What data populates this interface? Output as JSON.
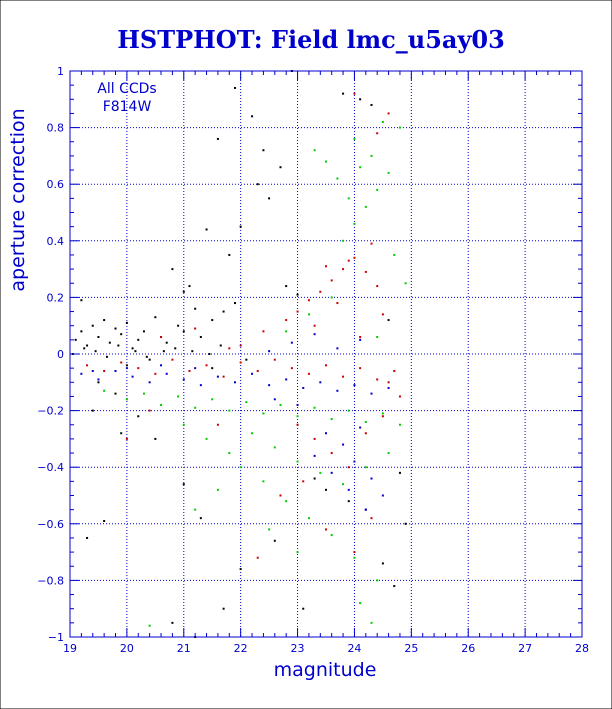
{
  "chart_data": {
    "type": "scatter",
    "title": "HSTPHOT: Field lmc_u5ay03",
    "xlabel": "magnitude",
    "ylabel": "aperture correction",
    "xlim": [
      19,
      28
    ],
    "ylim": [
      -1,
      1
    ],
    "x_ticks": [
      "19",
      "20",
      "21",
      "22",
      "23",
      "24",
      "25",
      "26",
      "27",
      "28"
    ],
    "y_ticks": [
      "−1",
      "−0.8",
      "−0.6",
      "−0.4",
      "−0.2",
      "0",
      "0.2",
      "0.4",
      "0.6",
      "0.8",
      "1"
    ],
    "grid": true,
    "annotations": [
      "All CCDs",
      "F814W"
    ],
    "series": [
      {
        "color": "#000000",
        "points": [
          [
            19.1,
            0.05
          ],
          [
            19.2,
            0.08
          ],
          [
            19.3,
            0.03
          ],
          [
            19.4,
            0.1
          ],
          [
            19.5,
            0.06
          ],
          [
            19.6,
            0.12
          ],
          [
            19.7,
            0.04
          ],
          [
            19.8,
            0.09
          ],
          [
            19.9,
            0.07
          ],
          [
            20.0,
            0.11
          ],
          [
            20.1,
            0.02
          ],
          [
            20.2,
            0.05
          ],
          [
            20.3,
            0.08
          ],
          [
            20.5,
            0.13
          ],
          [
            20.6,
            0.06
          ],
          [
            20.7,
            0.04
          ],
          [
            20.9,
            0.1
          ],
          [
            21.0,
            0.08
          ],
          [
            21.2,
            0.16
          ],
          [
            21.3,
            0.06
          ],
          [
            21.5,
            0.12
          ],
          [
            21.7,
            0.15
          ],
          [
            21.9,
            0.18
          ],
          [
            21.1,
            0.24
          ],
          [
            21.0,
            0.22
          ],
          [
            20.8,
            0.3
          ],
          [
            21.4,
            0.44
          ],
          [
            21.8,
            0.35
          ],
          [
            22.0,
            0.45
          ],
          [
            22.3,
            0.6
          ],
          [
            22.5,
            0.55
          ],
          [
            22.7,
            0.66
          ],
          [
            21.6,
            0.76
          ],
          [
            21.9,
            0.94
          ],
          [
            22.2,
            0.84
          ],
          [
            22.4,
            0.72
          ],
          [
            22.9,
            1.0
          ],
          [
            23.8,
            0.92
          ],
          [
            24.1,
            0.9
          ],
          [
            24.3,
            0.88
          ],
          [
            19.2,
            0.19
          ],
          [
            19.5,
            -0.1
          ],
          [
            19.8,
            -0.14
          ],
          [
            20.2,
            -0.22
          ],
          [
            20.5,
            -0.3
          ],
          [
            21.0,
            -0.46
          ],
          [
            21.3,
            -0.58
          ],
          [
            21.7,
            -0.9
          ],
          [
            22.0,
            -0.76
          ],
          [
            22.6,
            -0.66
          ],
          [
            23.1,
            -0.9
          ],
          [
            20.8,
            -0.95
          ],
          [
            21.2,
            -1.0
          ],
          [
            19.3,
            -0.65
          ],
          [
            19.6,
            -0.59
          ],
          [
            24.9,
            -0.6
          ],
          [
            24.7,
            -0.82
          ],
          [
            24.5,
            -0.74
          ],
          [
            24.2,
            -0.55
          ],
          [
            23.9,
            -0.52
          ],
          [
            23.5,
            -0.48
          ],
          [
            23.3,
            -0.44
          ],
          [
            24.8,
            -0.42
          ],
          [
            20.0,
            -0.04
          ],
          [
            20.4,
            -0.02
          ],
          [
            21.5,
            -0.05
          ],
          [
            19.4,
            -0.2
          ],
          [
            19.9,
            -0.28
          ],
          [
            22.8,
            0.24
          ],
          [
            23.0,
            0.21
          ],
          [
            24.6,
            0.12
          ],
          [
            22.1,
            -0.02
          ],
          [
            19.05,
            0.0
          ],
          [
            19.25,
            0.02
          ],
          [
            19.45,
            0.01
          ],
          [
            19.65,
            -0.01
          ],
          [
            19.85,
            0.03
          ],
          [
            20.15,
            0.01
          ],
          [
            20.35,
            -0.01
          ],
          [
            20.65,
            0.01
          ],
          [
            20.85,
            0.02
          ],
          [
            21.15,
            0.01
          ],
          [
            21.45,
            0.0
          ],
          [
            21.65,
            0.03
          ]
        ]
      },
      {
        "color": "#cc0000",
        "points": [
          [
            19.3,
            -0.04
          ],
          [
            19.6,
            -0.06
          ],
          [
            19.9,
            -0.03
          ],
          [
            20.2,
            -0.05
          ],
          [
            20.5,
            -0.07
          ],
          [
            20.8,
            -0.02
          ],
          [
            21.1,
            -0.06
          ],
          [
            21.4,
            -0.04
          ],
          [
            21.7,
            -0.08
          ],
          [
            22.0,
            -0.03
          ],
          [
            22.3,
            -0.06
          ],
          [
            22.6,
            -0.02
          ],
          [
            22.9,
            -0.05
          ],
          [
            23.2,
            -0.07
          ],
          [
            23.5,
            -0.04
          ],
          [
            23.8,
            -0.08
          ],
          [
            24.1,
            -0.05
          ],
          [
            24.4,
            -0.09
          ],
          [
            24.7,
            -0.06
          ],
          [
            22.0,
            0.03
          ],
          [
            22.4,
            0.08
          ],
          [
            22.8,
            0.12
          ],
          [
            23.0,
            0.15
          ],
          [
            23.2,
            0.19
          ],
          [
            23.4,
            0.22
          ],
          [
            23.6,
            0.26
          ],
          [
            23.8,
            0.3
          ],
          [
            24.0,
            0.34
          ],
          [
            24.2,
            0.29
          ],
          [
            24.4,
            0.24
          ],
          [
            23.3,
            0.1
          ],
          [
            23.7,
            0.18
          ],
          [
            24.1,
            0.06
          ],
          [
            24.5,
            0.14
          ],
          [
            23.5,
            0.31
          ],
          [
            23.9,
            0.33
          ],
          [
            24.3,
            0.39
          ],
          [
            24.6,
            0.85
          ],
          [
            24.4,
            0.78
          ],
          [
            24.0,
            0.92
          ],
          [
            20.6,
            0.06
          ],
          [
            21.2,
            0.09
          ],
          [
            21.8,
            0.02
          ],
          [
            23.0,
            -0.25
          ],
          [
            23.3,
            -0.3
          ],
          [
            23.6,
            -0.35
          ],
          [
            23.9,
            -0.4
          ],
          [
            24.2,
            -0.28
          ],
          [
            24.5,
            -0.22
          ],
          [
            22.7,
            -0.5
          ],
          [
            23.1,
            -0.45
          ],
          [
            23.5,
            -0.62
          ],
          [
            24.0,
            -0.7
          ],
          [
            24.3,
            -0.58
          ],
          [
            22.3,
            -0.72
          ],
          [
            24.6,
            -0.1
          ],
          [
            24.8,
            -0.15
          ],
          [
            20.0,
            -0.3
          ],
          [
            20.4,
            -0.2
          ],
          [
            21.6,
            -0.25
          ]
        ]
      },
      {
        "color": "#0000cc",
        "points": [
          [
            19.2,
            -0.07
          ],
          [
            19.5,
            -0.09
          ],
          [
            19.8,
            -0.06
          ],
          [
            20.1,
            -0.08
          ],
          [
            20.4,
            -0.1
          ],
          [
            20.7,
            -0.07
          ],
          [
            21.0,
            -0.09
          ],
          [
            21.3,
            -0.11
          ],
          [
            21.6,
            -0.08
          ],
          [
            21.9,
            -0.1
          ],
          [
            22.2,
            -0.07
          ],
          [
            22.5,
            -0.11
          ],
          [
            22.8,
            -0.09
          ],
          [
            23.1,
            -0.12
          ],
          [
            23.4,
            -0.1
          ],
          [
            23.7,
            -0.13
          ],
          [
            24.0,
            -0.11
          ],
          [
            24.3,
            -0.14
          ],
          [
            24.6,
            -0.12
          ],
          [
            22.5,
            0.01
          ],
          [
            22.9,
            0.04
          ],
          [
            23.3,
            0.07
          ],
          [
            23.7,
            0.02
          ],
          [
            24.1,
            0.05
          ],
          [
            23.5,
            -0.28
          ],
          [
            23.8,
            -0.32
          ],
          [
            24.0,
            -0.38
          ],
          [
            24.3,
            -0.44
          ],
          [
            24.5,
            -0.5
          ],
          [
            24.2,
            -0.55
          ],
          [
            23.9,
            -0.48
          ],
          [
            23.6,
            -0.42
          ],
          [
            23.3,
            -0.36
          ],
          [
            24.1,
            -0.26
          ],
          [
            22.6,
            -0.16
          ],
          [
            23.0,
            -0.18
          ],
          [
            21.2,
            -0.05
          ],
          [
            20.6,
            -0.04
          ],
          [
            20.0,
            -0.05
          ],
          [
            19.4,
            -0.06
          ]
        ]
      },
      {
        "color": "#00cc00",
        "points": [
          [
            19.6,
            -0.13
          ],
          [
            20.0,
            -0.16
          ],
          [
            20.3,
            -0.14
          ],
          [
            20.6,
            -0.18
          ],
          [
            20.9,
            -0.15
          ],
          [
            21.2,
            -0.19
          ],
          [
            21.5,
            -0.16
          ],
          [
            21.8,
            -0.2
          ],
          [
            22.1,
            -0.17
          ],
          [
            22.4,
            -0.21
          ],
          [
            22.7,
            -0.18
          ],
          [
            23.0,
            -0.22
          ],
          [
            23.3,
            -0.19
          ],
          [
            23.6,
            -0.23
          ],
          [
            23.9,
            -0.2
          ],
          [
            24.2,
            -0.24
          ],
          [
            24.5,
            -0.21
          ],
          [
            24.8,
            -0.25
          ],
          [
            21.0,
            -0.25
          ],
          [
            21.4,
            -0.3
          ],
          [
            21.8,
            -0.35
          ],
          [
            22.2,
            -0.28
          ],
          [
            22.6,
            -0.33
          ],
          [
            23.0,
            -0.38
          ],
          [
            23.4,
            -0.42
          ],
          [
            23.8,
            -0.46
          ],
          [
            24.2,
            -0.4
          ],
          [
            24.6,
            -0.35
          ],
          [
            22.0,
            -0.4
          ],
          [
            22.4,
            -0.45
          ],
          [
            22.8,
            -0.52
          ],
          [
            23.2,
            -0.58
          ],
          [
            23.6,
            -0.64
          ],
          [
            24.0,
            -0.72
          ],
          [
            24.4,
            -0.8
          ],
          [
            21.6,
            -0.48
          ],
          [
            21.2,
            -0.55
          ],
          [
            22.5,
            -0.62
          ],
          [
            23.0,
            -0.7
          ],
          [
            24.1,
            -0.88
          ],
          [
            24.3,
            -0.95
          ],
          [
            20.4,
            -0.96
          ],
          [
            23.8,
            0.4
          ],
          [
            24.0,
            0.46
          ],
          [
            24.2,
            0.52
          ],
          [
            24.4,
            0.58
          ],
          [
            24.6,
            0.64
          ],
          [
            24.3,
            0.7
          ],
          [
            24.0,
            0.76
          ],
          [
            23.7,
            0.62
          ],
          [
            23.5,
            0.68
          ],
          [
            23.3,
            0.72
          ],
          [
            24.5,
            0.82
          ],
          [
            24.8,
            0.8
          ],
          [
            24.1,
            0.66
          ],
          [
            23.9,
            0.55
          ],
          [
            24.7,
            0.35
          ],
          [
            24.9,
            0.25
          ],
          [
            23.6,
            0.2
          ],
          [
            23.2,
            0.14
          ],
          [
            22.8,
            0.08
          ],
          [
            24.4,
            0.06
          ]
        ]
      }
    ]
  }
}
